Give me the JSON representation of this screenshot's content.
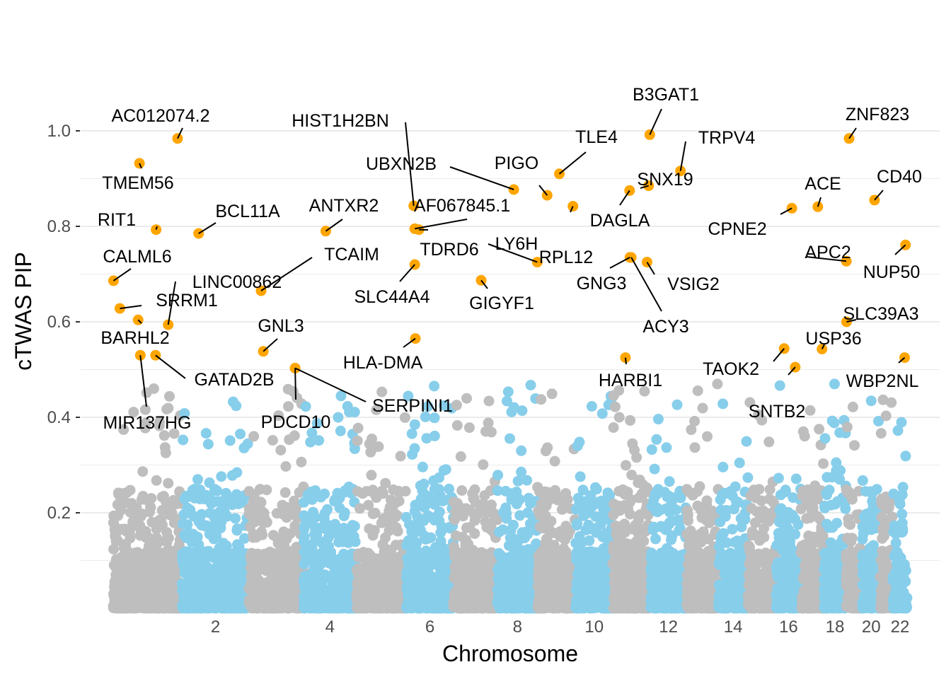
{
  "chart_data": {
    "type": "scatter",
    "title": "",
    "xlabel": "Chromosome",
    "ylabel": "cTWAS PIP",
    "ylim": [
      0,
      1.05
    ],
    "y_ticks": [
      {
        "value": 0.2,
        "label": "0.2"
      },
      {
        "value": 0.4,
        "label": "0.4"
      },
      {
        "value": 0.6,
        "label": "0.6"
      },
      {
        "value": 0.8,
        "label": "0.8"
      },
      {
        "value": 1.0,
        "label": "1.0"
      }
    ],
    "x_ticks": [
      {
        "position": 1,
        "label": ""
      },
      {
        "position": 2,
        "label": "2"
      },
      {
        "position": 3,
        "label": ""
      },
      {
        "position": 4,
        "label": "4"
      },
      {
        "position": 5,
        "label": ""
      },
      {
        "position": 6,
        "label": "6"
      },
      {
        "position": 7,
        "label": ""
      },
      {
        "position": 8,
        "label": "8"
      },
      {
        "position": 9,
        "label": ""
      },
      {
        "position": 10,
        "label": "10"
      },
      {
        "position": 11,
        "label": ""
      },
      {
        "position": 12,
        "label": "12"
      },
      {
        "position": 13,
        "label": ""
      },
      {
        "position": 14,
        "label": "14"
      },
      {
        "position": 15,
        "label": ""
      },
      {
        "position": 16,
        "label": "16"
      },
      {
        "position": 17,
        "label": ""
      },
      {
        "position": 18,
        "label": "18"
      },
      {
        "position": 19,
        "label": ""
      },
      {
        "position": 20,
        "label": "20"
      },
      {
        "position": 21,
        "label": ""
      },
      {
        "position": 22,
        "label": "22"
      }
    ],
    "chromosome_sizes_mb": [
      249,
      242,
      198,
      190,
      181,
      171,
      159,
      145,
      138,
      134,
      135,
      133,
      114,
      107,
      102,
      90,
      83,
      80,
      59,
      64,
      47,
      51
    ],
    "colors": {
      "odd_chromosome": "#bebebe",
      "even_chromosome": "#87ceeb",
      "highlighted": "#ffa500",
      "gridline": "#ebebeb",
      "label_line": "#000000"
    },
    "highlight_threshold": 0.5,
    "highlighted_genes": [
      {
        "gene": "AC012074.2",
        "chr": 1,
        "pos_mb": 233,
        "pip": 0.984
      },
      {
        "gene": "TMEM56",
        "chr": 1,
        "pos_mb": 95,
        "pip": 0.932
      },
      {
        "gene": "RIT1",
        "chr": 1,
        "pos_mb": 155,
        "pip": 0.793
      },
      {
        "gene": "CALML6",
        "chr": 1,
        "pos_mb": 1,
        "pip": 0.686
      },
      {
        "gene": "SRRM1",
        "chr": 1,
        "pos_mb": 24,
        "pip": 0.628
      },
      {
        "gene": "BARHL2",
        "chr": 1,
        "pos_mb": 90,
        "pip": 0.604
      },
      {
        "gene": "LINC00862",
        "chr": 1,
        "pos_mb": 199,
        "pip": 0.594
      },
      {
        "gene": "MIR137HG",
        "chr": 1,
        "pos_mb": 98,
        "pip": 0.53
      },
      {
        "gene": "GATAD2B",
        "chr": 1,
        "pos_mb": 153,
        "pip": 0.53
      },
      {
        "gene": "BCL11A",
        "chr": 2,
        "pos_mb": 60,
        "pip": 0.785
      },
      {
        "gene": "ANTXR2",
        "chr": 4,
        "pos_mb": 80,
        "pip": 0.79
      },
      {
        "gene": "TCAIM",
        "chr": 3,
        "pos_mb": 44,
        "pip": 0.665
      },
      {
        "gene": "GNL3",
        "chr": 3,
        "pos_mb": 52,
        "pip": 0.538
      },
      {
        "gene": "PDCD10",
        "chr": 3,
        "pos_mb": 167,
        "pip": 0.503
      },
      {
        "gene": "SERPINI1",
        "chr": 3,
        "pos_mb": 167,
        "pip": 0.503
      },
      {
        "gene": "HIST1H2BN",
        "chr": 6,
        "pos_mb": 27,
        "pip": 0.843
      },
      {
        "gene": "AF067845.1",
        "chr": 6,
        "pos_mb": 31,
        "pip": 0.795
      },
      {
        "gene": "TDRD6",
        "chr": 6,
        "pos_mb": 46,
        "pip": 0.793
      },
      {
        "gene": "SLC44A4",
        "chr": 6,
        "pos_mb": 31,
        "pip": 0.72
      },
      {
        "gene": "HLA-DMA",
        "chr": 6,
        "pos_mb": 33,
        "pip": 0.565
      },
      {
        "gene": "UBXN2B",
        "chr": 8,
        "pos_mb": 59,
        "pip": 0.877
      },
      {
        "gene": "LY6H",
        "chr": 8,
        "pos_mb": 144,
        "pip": 0.725
      },
      {
        "gene": "GIGYF1",
        "chr": 7,
        "pos_mb": 100,
        "pip": 0.687
      },
      {
        "gene": "PIGO",
        "chr": 9,
        "pos_mb": 35,
        "pip": 0.865
      },
      {
        "gene": "TLE4",
        "chr": 9,
        "pos_mb": 79,
        "pip": 0.91
      },
      {
        "gene": "RPL12",
        "chr": 9,
        "pos_mb": 128,
        "pip": 0.842
      },
      {
        "gene": "B3GAT1",
        "chr": 11,
        "pos_mb": 134,
        "pip": 0.992
      },
      {
        "gene": "TRPV4",
        "chr": 12,
        "pos_mb": 110,
        "pip": 0.916
      },
      {
        "gene": "SNX19",
        "chr": 11,
        "pos_mb": 130,
        "pip": 0.885
      },
      {
        "gene": "DAGLA",
        "chr": 11,
        "pos_mb": 61,
        "pip": 0.875
      },
      {
        "gene": "GNG3",
        "chr": 11,
        "pos_mb": 62,
        "pip": 0.735
      },
      {
        "gene": "VSIG2",
        "chr": 11,
        "pos_mb": 124,
        "pip": 0.725
      },
      {
        "gene": "ACY3",
        "chr": 11,
        "pos_mb": 67,
        "pip": 0.735
      },
      {
        "gene": "HARBI1",
        "chr": 11,
        "pos_mb": 46,
        "pip": 0.525
      },
      {
        "gene": "ZNF823",
        "chr": 19,
        "pos_mb": 11,
        "pip": 0.984
      },
      {
        "gene": "ACE",
        "chr": 17,
        "pos_mb": 61,
        "pip": 0.841
      },
      {
        "gene": "CD40",
        "chr": 20,
        "pos_mb": 44,
        "pip": 0.855
      },
      {
        "gene": "CPNE2",
        "chr": 16,
        "pos_mb": 57,
        "pip": 0.838
      },
      {
        "gene": "APC2",
        "chr": 19,
        "pos_mb": 1,
        "pip": 0.727
      },
      {
        "gene": "NUP50",
        "chr": 22,
        "pos_mb": 45,
        "pip": 0.761
      },
      {
        "gene": "SLC39A3",
        "chr": 19,
        "pos_mb": 2,
        "pip": 0.6
      },
      {
        "gene": "USP36",
        "chr": 17,
        "pos_mb": 76,
        "pip": 0.543
      },
      {
        "gene": "TAOK2",
        "chr": 16,
        "pos_mb": 29,
        "pip": 0.544
      },
      {
        "gene": "SNTB2",
        "chr": 16,
        "pos_mb": 69,
        "pip": 0.505
      },
      {
        "gene": "WBP2NL",
        "chr": 22,
        "pos_mb": 42,
        "pip": 0.525
      }
    ],
    "notes": "Background points: several thousand genes with PIP mostly between 0 and 0.45 (dense below 0.2), alternately coloured grey (odd chromosomes) and light blue (even chromosomes); points with PIP above 0.5 are drawn in orange."
  }
}
